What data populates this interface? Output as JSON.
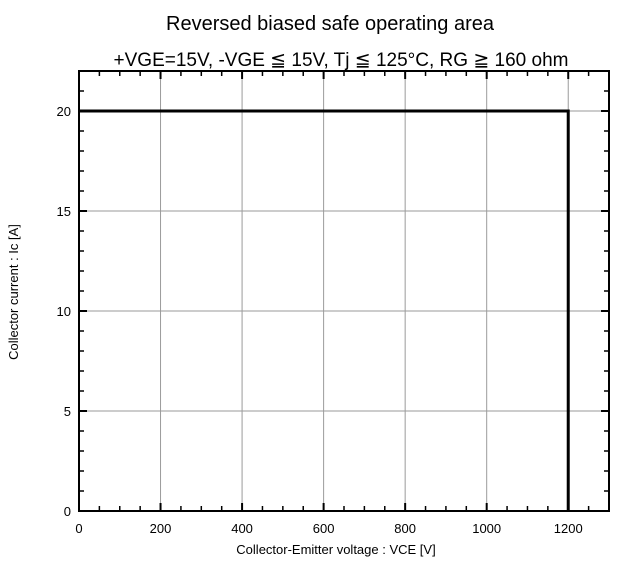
{
  "chart_data": {
    "type": "line",
    "title": "Reversed biased safe operating area",
    "subtitle": "+VGE=15V,  -VGE ≦ 15V,  Tj ≦ 125°C,  RG ≧ 160 ohm",
    "xlabel": "Collector-Emitter voltage  :  VCE [V]",
    "ylabel": "Collector current  :  Ic [A]",
    "xlim": [
      0,
      1300
    ],
    "ylim": [
      0,
      22
    ],
    "x_ticks": [
      0,
      200,
      400,
      600,
      800,
      1000,
      1200
    ],
    "y_ticks": [
      0,
      5,
      10,
      15,
      20
    ],
    "x_minor_step": 50,
    "y_minor_step": 1,
    "grid": true,
    "series": [
      {
        "x": [
          0,
          1200,
          1200
        ],
        "y": [
          20,
          20,
          0
        ]
      }
    ]
  }
}
